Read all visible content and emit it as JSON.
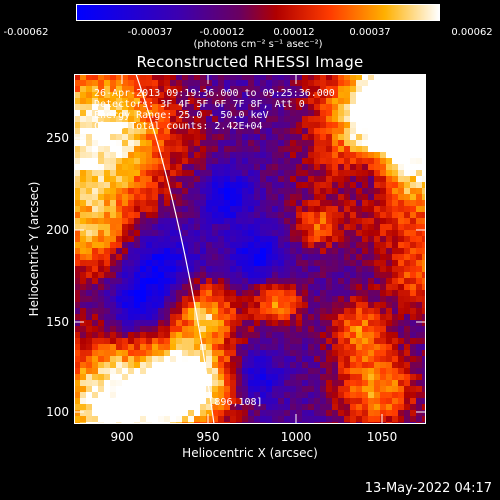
{
  "colorbar": {
    "ticks": [
      "-0.00062",
      "-0.00037",
      "-0.00012",
      "0.00012",
      "0.00037",
      "0.00062"
    ],
    "units": "(photons cm⁻² s⁻¹ asec⁻²)",
    "colors": [
      "#0000ff",
      "#3b00a0",
      "#7a0060",
      "#c40000",
      "#ff6a00",
      "#ffd000",
      "#ffffff"
    ]
  },
  "title": "Reconstructed RHESSI Image",
  "annotations": {
    "time_range": "26-Apr-2013 09:19:36.000 to 09:25:36.000",
    "detectors": "Detectors: 3F 4F 5F 6F 7F 8F, Att 0",
    "energy": "Energy Range: 25.0 - 50.0 keV",
    "algorithm": "Clean     Total counts: 2.42E+04",
    "peak": "Position of Peak = [896,108]"
  },
  "axes": {
    "x_label": "Heliocentric X (arcsec)",
    "y_label": "Heliocentric Y (arcsec)",
    "x_ticks": [
      "900",
      "950",
      "1000",
      "1050"
    ],
    "y_ticks": [
      "250",
      "200",
      "150",
      "100"
    ],
    "x_range": [
      878,
      1068
    ],
    "y_range": [
      92,
      279
    ]
  },
  "datestamp": "13-May-2022 04:17"
}
